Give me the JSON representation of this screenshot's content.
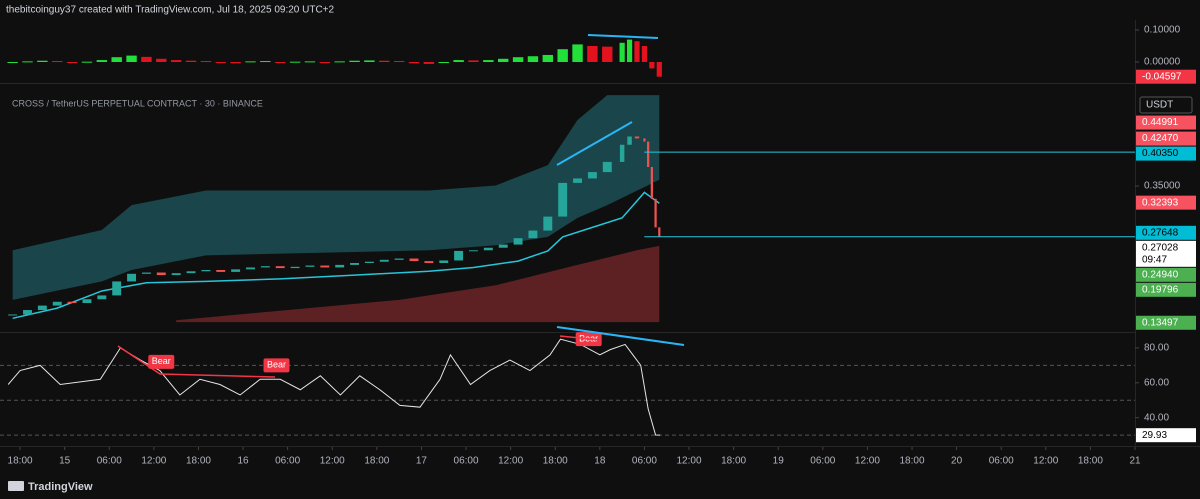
{
  "header": {
    "text": "thebitcoinguy37 created with TradingView.com, Jul 18, 2025 09:20 UTC+2"
  },
  "footer": {
    "brand": "TradingView"
  },
  "chart_data": [
    {
      "type": "histogram",
      "xlim": [
        -2.7,
        150
      ],
      "ylim": [
        -0.0625,
        0.125
      ],
      "yticks": [
        {
          "value": 0.1,
          "label": "0.10000"
        },
        {
          "value": 0,
          "label": "0.00000"
        }
      ],
      "price_tags": [
        {
          "value": -0.04597,
          "label": "-0.04597",
          "color": "#f23645",
          "text_color": "#ffffff"
        }
      ],
      "up_color": "#22e03a",
      "down_color": "#e3121e",
      "x": [
        -1,
        1,
        3,
        5,
        7,
        9,
        11,
        13,
        15,
        17,
        19,
        21,
        23,
        25,
        27,
        29,
        31,
        33,
        35,
        37,
        39,
        41,
        43,
        45,
        47,
        49,
        51,
        53,
        55,
        57,
        59,
        61,
        63,
        65,
        67,
        69,
        71,
        73,
        75,
        77,
        79,
        81,
        82,
        83,
        84,
        85,
        86
      ],
      "values": [
        -0.003,
        0.002,
        0.004,
        0.003,
        -0.002,
        0.001,
        0.006,
        0.015,
        0.02,
        0.016,
        0.01,
        0.006,
        0.004,
        0.003,
        -0.003,
        -0.004,
        0.002,
        0.003,
        -0.002,
        0.001,
        0.002,
        -0.003,
        0.002,
        0.004,
        0.005,
        0.004,
        0.003,
        -0.004,
        -0.006,
        -0.003,
        0.006,
        0.005,
        0.006,
        0.01,
        0.015,
        0.018,
        0.022,
        0.04,
        0.055,
        0.05,
        0.048,
        0.06,
        0.07,
        0.065,
        0.05,
        -0.02,
        -0.04597
      ]
    },
    {
      "type": "candlestick",
      "title": "CROSS / TetherUS PERPETUAL CONTRACT · 30 · BINANCE",
      "unit": "USDT",
      "countdown": "09:47",
      "xlim": [
        -2.7,
        150
      ],
      "ylim": [
        0.1236,
        0.509
      ],
      "yticks": [
        {
          "value": 0.35,
          "label": "0.35000"
        }
      ],
      "up_color": "#26a69a",
      "down_color": "#ef5350",
      "x": [
        -1,
        1,
        3,
        5,
        7,
        9,
        11,
        13,
        15,
        17,
        19,
        21,
        23,
        25,
        27,
        29,
        31,
        33,
        35,
        37,
        39,
        41,
        43,
        45,
        47,
        49,
        51,
        53,
        55,
        57,
        59,
        61,
        63,
        65,
        67,
        69,
        71,
        73,
        75,
        77,
        79,
        81,
        82,
        83,
        84,
        84.5,
        85,
        85.5,
        86
      ],
      "values": [
        0.148,
        0.155,
        0.162,
        0.168,
        0.166,
        0.172,
        0.178,
        0.2,
        0.212,
        0.214,
        0.21,
        0.213,
        0.216,
        0.218,
        0.215,
        0.219,
        0.222,
        0.224,
        0.221,
        0.223,
        0.225,
        0.222,
        0.226,
        0.229,
        0.231,
        0.234,
        0.236,
        0.232,
        0.229,
        0.233,
        0.248,
        0.249,
        0.253,
        0.258,
        0.268,
        0.28,
        0.302,
        0.355,
        0.362,
        0.372,
        0.388,
        0.415,
        0.428,
        0.425,
        0.42,
        0.38,
        0.33,
        0.285,
        0.27028
      ],
      "series": [
        {
          "color": "#1c4f55",
          "x": [
            -1,
            11,
            15,
            25,
            55,
            64,
            71,
            75,
            79,
            86
          ],
          "values": [
            0.249,
            0.281,
            0.32,
            0.343,
            0.343,
            0.351,
            0.383,
            0.454,
            0.493,
            0.493
          ],
          "lower": [
            0.171,
            0.2,
            0.218,
            0.241,
            0.249,
            0.257,
            0.27,
            0.3,
            0.32,
            0.36
          ]
        },
        {
          "color": "#6b2428",
          "x": [
            21,
            51,
            64,
            75,
            83,
            86
          ],
          "values": [
            0.139,
            0.171,
            0.194,
            0.226,
            0.249,
            0.256
          ],
          "lower": [
            0.136,
            0.136,
            0.136,
            0.136,
            0.136,
            0.136
          ]
        },
        {
          "color": "#26c6da",
          "x": [
            -1,
            5,
            11,
            17,
            25,
            35,
            45,
            55,
            61,
            67,
            71,
            73,
            77,
            81,
            84,
            86
          ],
          "values": [
            0.142,
            0.158,
            0.185,
            0.198,
            0.2,
            0.204,
            0.21,
            0.216,
            0.222,
            0.232,
            0.248,
            0.27,
            0.285,
            0.3,
            0.34,
            0.323
          ]
        }
      ],
      "price_tags": [
        {
          "value": 0.44991,
          "label": "0.44991",
          "color": "#f7525f",
          "text_color": "#ffffff"
        },
        {
          "value": 0.4247,
          "label": "0.42470",
          "color": "#f7525f",
          "text_color": "#ffffff"
        },
        {
          "value": 0.4035,
          "label": "0.40350",
          "color": "#00bcd4",
          "text_color": "#000000",
          "line": true
        },
        {
          "value": 0.32393,
          "label": "0.32393",
          "color": "#f7525f",
          "text_color": "#ffffff"
        },
        {
          "value": 0.27648,
          "label": "0.27648",
          "color": "#00bcd4",
          "text_color": "#000000"
        },
        {
          "value": 0.27028,
          "label": "0.27028",
          "color": "#ffffff",
          "text_color": "#000000",
          "line": true,
          "countdown": true
        },
        {
          "value": 0.2494,
          "label": "0.24940",
          "color": "#4caf50",
          "text_color": "#ffffff"
        },
        {
          "value": 0.19796,
          "label": "0.19796",
          "color": "#4caf50",
          "text_color": "#ffffff"
        },
        {
          "value": 0.13497,
          "label": "0.13497",
          "color": "#4caf50",
          "text_color": "#ffffff"
        }
      ]
    },
    {
      "type": "line",
      "xlim": [
        -2.7,
        150
      ],
      "ylim": [
        24.3,
        87.4
      ],
      "yticks": [
        {
          "value": 80,
          "label": "80.00"
        },
        {
          "value": 60,
          "label": "60.00"
        },
        {
          "value": 40,
          "label": "40.00"
        }
      ],
      "levels": [
        70,
        50,
        30
      ],
      "color": "#e6e6e6",
      "x": [
        -1.6,
        0,
        2.7,
        5.4,
        10.8,
        13.5,
        16.2,
        18.8,
        21.5,
        24.2,
        26.9,
        29.6,
        32.3,
        35,
        37.7,
        40.4,
        43.1,
        45.7,
        48.4,
        51.1,
        53.8,
        56.5,
        57.9,
        60.6,
        63.2,
        65.9,
        68.6,
        71.3,
        72.7,
        75.4,
        78,
        79.4,
        81.4,
        83.5,
        84.5,
        85.5,
        86.1
      ],
      "values": [
        59,
        67,
        70,
        59,
        62,
        80,
        73,
        67,
        53,
        62,
        59,
        53,
        62,
        62,
        56,
        64,
        53,
        64,
        56,
        47,
        46,
        62,
        76,
        59,
        67,
        73,
        67,
        76,
        85,
        82,
        76,
        79,
        82,
        70,
        45,
        30,
        29.93
      ],
      "price_tags": [
        {
          "value": 29.93,
          "label": "29.93",
          "color": "#ffffff",
          "text_color": "#000000"
        }
      ],
      "annotations": [
        {
          "text": "Bear",
          "x": 19,
          "y": 72
        },
        {
          "text": "Bear",
          "x": 34.5,
          "y": 70
        },
        {
          "text": "Bear",
          "x": 76.5,
          "y": 85
        }
      ],
      "xticks": [
        {
          "value": 0,
          "label": "18:00"
        },
        {
          "value": 6,
          "label": "15"
        },
        {
          "value": 12,
          "label": "06:00"
        },
        {
          "value": 18,
          "label": "12:00"
        },
        {
          "value": 24,
          "label": "18:00"
        },
        {
          "value": 30,
          "label": "16"
        },
        {
          "value": 36,
          "label": "06:00"
        },
        {
          "value": 42,
          "label": "12:00"
        },
        {
          "value": 48,
          "label": "18:00"
        },
        {
          "value": 54,
          "label": "17"
        },
        {
          "value": 60,
          "label": "06:00"
        },
        {
          "value": 66,
          "label": "12:00"
        },
        {
          "value": 72,
          "label": "18:00"
        },
        {
          "value": 78,
          "label": "18"
        },
        {
          "value": 84,
          "label": "06:00"
        },
        {
          "value": 90,
          "label": "12:00"
        },
        {
          "value": 96,
          "label": "18:00"
        },
        {
          "value": 102,
          "label": "19"
        },
        {
          "value": 108,
          "label": "06:00"
        },
        {
          "value": 114,
          "label": "12:00"
        },
        {
          "value": 120,
          "label": "18:00"
        },
        {
          "value": 126,
          "label": "20"
        },
        {
          "value": 132,
          "label": "06:00"
        },
        {
          "value": 138,
          "label": "12:00"
        },
        {
          "value": 144,
          "label": "18:00"
        },
        {
          "value": 150,
          "label": "21"
        }
      ]
    }
  ]
}
